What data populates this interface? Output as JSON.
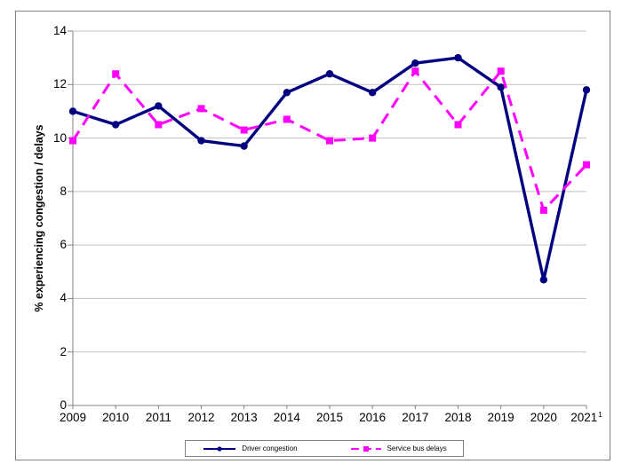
{
  "chart_data": {
    "type": "line",
    "title": "",
    "ylabel": "% experiencing congestion / delays",
    "xlabel": "",
    "ylim": [
      0,
      14
    ],
    "ytick_step": 2,
    "ytick_labels": [
      "0",
      "2",
      "4",
      "6",
      "8",
      "10",
      "12",
      "14"
    ],
    "grid": "horizontal",
    "legend_position": "bottom",
    "categories": [
      "2009",
      "2010",
      "2011",
      "2012",
      "2013",
      "2014",
      "2015",
      "2016",
      "2017",
      "2018",
      "2019",
      "2020",
      "2021"
    ],
    "last_category_superscript": "1",
    "series": [
      {
        "name": "Driver congestion",
        "color": "#000080",
        "line_style": "solid",
        "marker": "circle",
        "values": [
          11.0,
          10.5,
          11.2,
          9.9,
          9.7,
          11.7,
          12.4,
          11.7,
          12.8,
          13.0,
          11.9,
          4.7,
          11.8
        ]
      },
      {
        "name": "Service bus delays",
        "color": "#FF00FF",
        "line_style": "dashed",
        "marker": "square",
        "values": [
          9.9,
          12.4,
          10.5,
          11.1,
          10.3,
          10.7,
          9.9,
          10.0,
          12.5,
          10.5,
          12.5,
          7.3,
          9.0
        ]
      }
    ]
  },
  "colors": {
    "axis": "#808080",
    "gridline": "#c0c0c0",
    "frame_border": "#808080",
    "navy": "#000080",
    "magenta": "#FF00FF"
  }
}
